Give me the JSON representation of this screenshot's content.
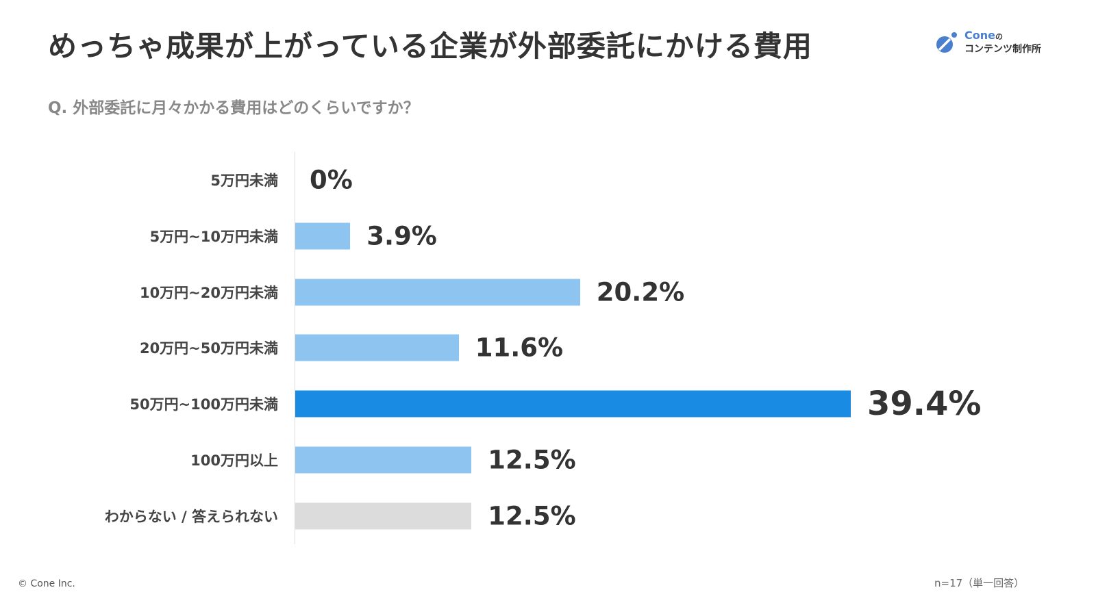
{
  "title": "めっちゃ成果が上がっている企業が外部委託にかける費用",
  "logo": {
    "name": "Cone",
    "particle": "の",
    "subtitle": "コンテンツ制作所"
  },
  "question": "Q.  外部委託に月々かかる費用はどのくらいですか？",
  "footer": {
    "copyright": "© Cone Inc.",
    "sample": "n=17（単一回答）"
  },
  "chart_data": {
    "type": "bar",
    "orientation": "horizontal",
    "categories": [
      "5万円未満",
      "5万円~10万円未満",
      "10万円~20万円未満",
      "20万円~50万円未満",
      "50万円~100万円未満",
      "100万円以上",
      "わからない / 答えられない"
    ],
    "values": [
      0,
      3.9,
      20.2,
      11.6,
      39.4,
      12.5,
      12.5
    ],
    "value_labels": [
      "0%",
      "3.9%",
      "20.2%",
      "11.6%",
      "39.4%",
      "12.5%",
      "12.5%"
    ],
    "colors": [
      "#8dc4f0",
      "#8dc4f0",
      "#8dc4f0",
      "#8dc4f0",
      "#1a8be2",
      "#8dc4f0",
      "#dcdcdc"
    ],
    "xlim": [
      0,
      39.4
    ],
    "grid": false
  }
}
